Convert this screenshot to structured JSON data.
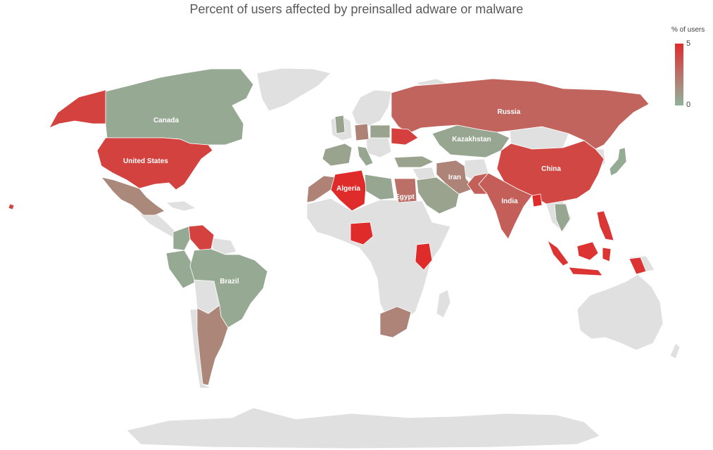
{
  "title": "Percent of users affected by preinsalled adware or malware",
  "legend": {
    "title": "% of users",
    "max_label": "5",
    "min_label": "0",
    "color_max": "#e02b2b",
    "color_mid": "#b9726a",
    "color_min": "#8fb39a"
  },
  "colors": {
    "no_data": "#e0e0e0",
    "border": "#ffffff"
  },
  "countries": [
    {
      "name": "Canada",
      "label": "Canada",
      "value": 0.4
    },
    {
      "name": "United States",
      "label": "United States",
      "value": 4.2
    },
    {
      "name": "Alaska",
      "label": "",
      "value": 4.2
    },
    {
      "name": "Mexico",
      "label": "",
      "value": 1.6
    },
    {
      "name": "Brazil",
      "label": "Brazil",
      "value": 0.4
    },
    {
      "name": "Venezuela",
      "label": "",
      "value": 4.2
    },
    {
      "name": "Argentina",
      "label": "",
      "value": 1.7
    },
    {
      "name": "Russia",
      "label": "Russia",
      "value": 3.0
    },
    {
      "name": "Kazakhstan",
      "label": "Kazakhstan",
      "value": 0.5
    },
    {
      "name": "China",
      "label": "China",
      "value": 4.0
    },
    {
      "name": "India",
      "label": "India",
      "value": 3.2
    },
    {
      "name": "Iran",
      "label": "Iran",
      "value": 1.8
    },
    {
      "name": "Algeria",
      "label": "Algeria",
      "value": 5.0
    },
    {
      "name": "Egypt",
      "label": "Egypt",
      "value": 2.6
    },
    {
      "name": "Nigeria",
      "label": "",
      "value": 5.0
    },
    {
      "name": "Kenya",
      "label": "",
      "value": 5.0
    },
    {
      "name": "South Africa",
      "label": "",
      "value": 1.8
    },
    {
      "name": "Indonesia",
      "label": "",
      "value": 4.7
    },
    {
      "name": "Philippines",
      "label": "",
      "value": 4.6
    },
    {
      "name": "Saudi Arabia",
      "label": "",
      "value": 0.6
    },
    {
      "name": "Japan",
      "label": "",
      "value": 0.3
    },
    {
      "name": "Morocco",
      "label": "",
      "value": 1.9
    },
    {
      "name": "Ukraine",
      "label": "",
      "value": 4.3
    },
    {
      "name": "Bangladesh",
      "label": "",
      "value": 5.0
    },
    {
      "name": "Turkey",
      "label": "",
      "value": 0.6
    }
  ]
}
